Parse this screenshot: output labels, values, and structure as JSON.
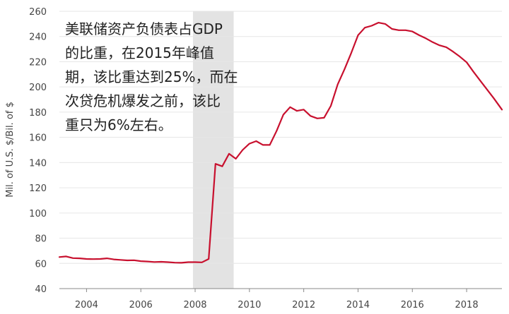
{
  "chart_data": {
    "type": "line",
    "ylabel": "Mil. of U.S. $/Bil. of $",
    "ylim": [
      40,
      260
    ],
    "xlim": [
      2003.0,
      2019.3
    ],
    "y_ticks": [
      40,
      60,
      80,
      100,
      120,
      140,
      160,
      180,
      200,
      220,
      240,
      260
    ],
    "x_ticks": [
      2004,
      2006,
      2008,
      2010,
      2012,
      2014,
      2016,
      2018
    ],
    "grid": "horizontal",
    "shaded_regions": [
      {
        "start": 2007.92,
        "end": 2009.42,
        "color": "#e3e3e3"
      }
    ],
    "annotation": {
      "lines": [
        "美联储资产负债表占GDP",
        "的比重，在2015年峰值",
        "期，该比重达到25%，而在",
        "次贷危机爆发之前，该比",
        "重只为6%左右。"
      ]
    },
    "series": [
      {
        "color": "#c8102e",
        "x": [
          2003.0,
          2003.25,
          2003.5,
          2003.75,
          2004.0,
          2004.25,
          2004.5,
          2004.75,
          2005.0,
          2005.25,
          2005.5,
          2005.75,
          2006.0,
          2006.25,
          2006.5,
          2006.75,
          2007.0,
          2007.25,
          2007.5,
          2007.75,
          2008.0,
          2008.25,
          2008.5,
          2008.75,
          2009.0,
          2009.25,
          2009.5,
          2009.75,
          2010.0,
          2010.25,
          2010.5,
          2010.75,
          2011.0,
          2011.25,
          2011.5,
          2011.75,
          2012.0,
          2012.25,
          2012.5,
          2012.75,
          2013.0,
          2013.25,
          2013.5,
          2013.75,
          2014.0,
          2014.25,
          2014.5,
          2014.75,
          2015.0,
          2015.25,
          2015.5,
          2015.75,
          2016.0,
          2016.25,
          2016.5,
          2016.75,
          2017.0,
          2017.25,
          2017.5,
          2017.75,
          2018.0,
          2018.25,
          2018.5,
          2018.75,
          2019.0,
          2019.3
        ],
        "values": [
          65,
          65.5,
          64.2,
          64,
          63.5,
          63.4,
          63.5,
          64,
          63.2,
          62.8,
          62.4,
          62.5,
          61.8,
          61.5,
          61.1,
          61.3,
          61,
          60.6,
          60.5,
          61,
          61,
          60.8,
          63.5,
          139,
          137,
          147,
          143,
          150,
          155,
          157,
          154,
          154,
          165,
          178,
          184,
          181,
          182,
          177,
          175,
          175.5,
          185,
          202,
          214,
          227,
          241,
          247,
          248.5,
          251,
          250,
          246,
          245,
          245,
          244,
          241,
          238.5,
          235.5,
          233,
          231.5,
          228,
          224,
          219.5,
          212,
          205,
          198,
          191,
          182
        ]
      }
    ]
  }
}
